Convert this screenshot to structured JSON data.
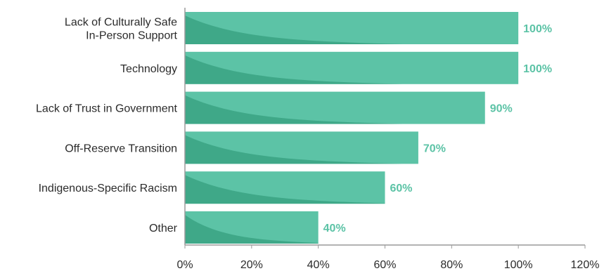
{
  "chart_data": {
    "type": "bar",
    "orientation": "horizontal",
    "categories": [
      [
        "Lack of Culturally Safe",
        "In-Person Support"
      ],
      [
        "Technology"
      ],
      [
        "Lack of Trust in Government"
      ],
      [
        "Off-Reserve Transition"
      ],
      [
        "Indigenous-Specific Racism"
      ],
      [
        "Other"
      ]
    ],
    "values": [
      100,
      100,
      90,
      70,
      60,
      40
    ],
    "value_labels": [
      "100%",
      "100%",
      "90%",
      "70%",
      "60%",
      "40%"
    ],
    "xlim": [
      0,
      120
    ],
    "x_ticks": [
      0,
      20,
      40,
      60,
      80,
      100,
      120
    ],
    "x_tick_labels": [
      "0%",
      "20%",
      "40%",
      "60%",
      "80%",
      "100%",
      "120%"
    ],
    "title": "",
    "xlabel": "",
    "ylabel": "",
    "grid": false,
    "legend": "none",
    "colors": {
      "bar": "#5cc3a6",
      "bar_shade": "#3fa888",
      "value_label": "#5cc3a6",
      "axis": "#9a9a9a",
      "text": "#2b2b2b"
    }
  }
}
